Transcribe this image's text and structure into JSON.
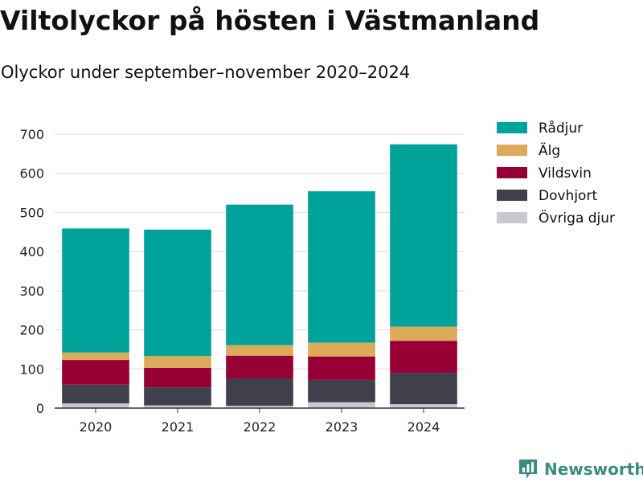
{
  "title": "Viltolyckor på hösten i Västmanland",
  "subtitle": "Olyckor under september–november 2020–2024",
  "brand": {
    "name": "Newsworthy",
    "icon": "newsworthy-logo-icon"
  },
  "chart_data": {
    "type": "bar",
    "stacked": true,
    "categories": [
      "2020",
      "2021",
      "2022",
      "2023",
      "2024"
    ],
    "ylim": [
      0,
      700
    ],
    "yticks": [
      0,
      100,
      200,
      300,
      400,
      500,
      600,
      700
    ],
    "grid": true,
    "legend_position": "right",
    "series": [
      {
        "name": "Övriga djur",
        "color": "#c9c8d1",
        "values": [
          12,
          7,
          6,
          15,
          10
        ]
      },
      {
        "name": "Dovhjort",
        "color": "#403f4c",
        "values": [
          48,
          46,
          70,
          57,
          80
        ]
      },
      {
        "name": "Vildsvin",
        "color": "#960034",
        "values": [
          63,
          50,
          58,
          60,
          82
        ]
      },
      {
        "name": "Älg",
        "color": "#dcaa58",
        "values": [
          19,
          30,
          27,
          35,
          36
        ]
      },
      {
        "name": "Rådjur",
        "color": "#00a39a",
        "values": [
          317,
          323,
          359,
          387,
          466
        ]
      }
    ],
    "legend_order": [
      "Rådjur",
      "Älg",
      "Vildsvin",
      "Dovhjort",
      "Övriga djur"
    ]
  }
}
